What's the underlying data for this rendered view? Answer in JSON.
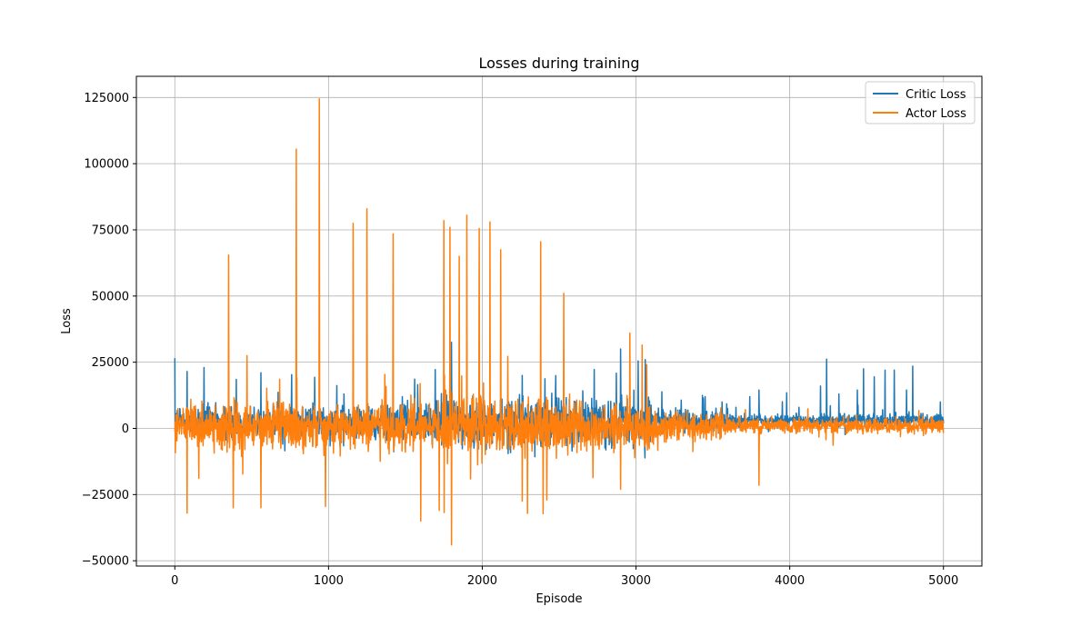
{
  "chart_data": {
    "type": "line",
    "title": "Losses during training",
    "xlabel": "Episode",
    "ylabel": "Loss",
    "xlim": [
      -250,
      5250
    ],
    "ylim": [
      -52000,
      133000
    ],
    "xticks": [
      0,
      1000,
      2000,
      3000,
      4000,
      5000
    ],
    "yticks": [
      -50000,
      -25000,
      0,
      25000,
      50000,
      75000,
      100000,
      125000
    ],
    "grid": true,
    "legend_position": "top-right",
    "series": [
      {
        "name": "Critic Loss",
        "color": "#1f77b4",
        "spikes": [
          [
            0,
            26500
          ],
          [
            80,
            21500
          ],
          [
            190,
            23000
          ],
          [
            400,
            18500
          ],
          [
            560,
            21000
          ],
          [
            1100,
            13000
          ],
          [
            1480,
            12000
          ],
          [
            1580,
            16500
          ],
          [
            1800,
            32500
          ],
          [
            2260,
            20000
          ],
          [
            2900,
            30000
          ],
          [
            3060,
            26000
          ],
          [
            3450,
            12000
          ],
          [
            3560,
            10000
          ],
          [
            3740,
            12000
          ],
          [
            3800,
            14500
          ],
          [
            3980,
            13500
          ],
          [
            4200,
            16000
          ],
          [
            4240,
            26200
          ],
          [
            4320,
            13000
          ],
          [
            4440,
            14500
          ],
          [
            4480,
            22500
          ],
          [
            4550,
            19500
          ],
          [
            4620,
            22000
          ],
          [
            4680,
            22000
          ],
          [
            4760,
            14500
          ],
          [
            4800,
            23500
          ],
          [
            4980,
            10000
          ]
        ]
      },
      {
        "name": "Actor Loss",
        "color": "#ff7f0e",
        "spikes": [
          [
            350,
            65500
          ],
          [
            470,
            27500
          ],
          [
            790,
            105500
          ],
          [
            940,
            124500
          ],
          [
            1160,
            77500
          ],
          [
            1250,
            83000
          ],
          [
            1420,
            73500
          ],
          [
            1750,
            78500
          ],
          [
            1790,
            76000
          ],
          [
            1850,
            65000
          ],
          [
            1900,
            80500
          ],
          [
            1980,
            75500
          ],
          [
            2050,
            78000
          ],
          [
            2120,
            67500
          ],
          [
            2380,
            70500
          ],
          [
            2530,
            51000
          ],
          [
            2960,
            36000
          ],
          [
            3040,
            31500
          ],
          [
            1800,
            -44000
          ],
          [
            1600,
            -35000
          ],
          [
            1720,
            -31000
          ],
          [
            80,
            -32000
          ],
          [
            380,
            -30000
          ],
          [
            560,
            -30000
          ],
          [
            980,
            -29500
          ],
          [
            2260,
            -27500
          ],
          [
            2420,
            -27000
          ],
          [
            2900,
            -23000
          ],
          [
            3800,
            -21500
          ]
        ]
      }
    ]
  }
}
